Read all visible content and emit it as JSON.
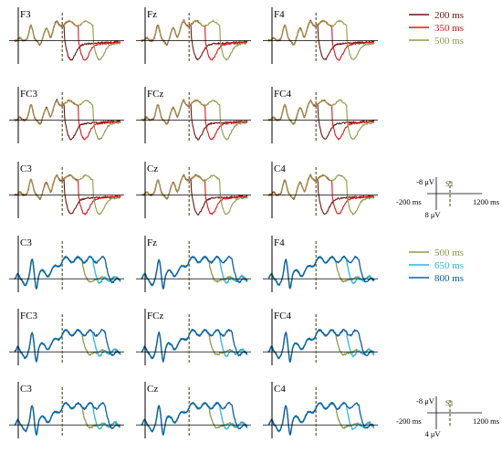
{
  "chart_data": [
    {
      "type": "line",
      "title": "",
      "x_range_ms": [
        -200,
        1200
      ],
      "s1_onset_ms": 0,
      "series": [
        {
          "name": "200 ms",
          "color": "#6e1412"
        },
        {
          "name": "350 ms",
          "color": "#e0161b"
        },
        {
          "name": "500 ms",
          "color": "#8e9c48"
        }
      ],
      "panels": [
        "F3",
        "Fz",
        "F4",
        "FC3",
        "FCz",
        "FC4",
        "C3",
        "Cz",
        "C4"
      ],
      "scale_bar": {
        "y_top": "-8 μV",
        "y_bottom": "8 μV",
        "x_left": "-200 ms",
        "x_right": "1200 ms",
        "marker": "S1"
      }
    },
    {
      "type": "line",
      "title": "",
      "x_range_ms": [
        -200,
        1200
      ],
      "s1_onset_ms": 0,
      "series": [
        {
          "name": "500 ms",
          "color": "#8e9c48"
        },
        {
          "name": "650 ms",
          "color": "#29b7e3"
        },
        {
          "name": "800 ms",
          "color": "#0d5fa6"
        }
      ],
      "panels": [
        "C3",
        "Fz",
        "F4",
        "FC3",
        "FCz",
        "FC4",
        "C3",
        "Cz",
        "C4"
      ],
      "scale_bar": {
        "y_top": "-8 μV",
        "y_bottom": "4 μV",
        "x_left": "-200 ms",
        "x_right": "1200 ms",
        "marker": "S1"
      }
    }
  ]
}
